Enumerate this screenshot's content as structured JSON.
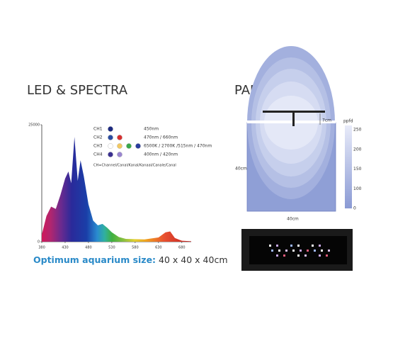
{
  "headings": {
    "left": "LED & SPECTRA",
    "right": "PAR"
  },
  "chart_data": {
    "type": "area",
    "x": [
      380,
      390,
      400,
      410,
      420,
      430,
      437,
      443,
      450,
      457,
      463,
      470,
      480,
      490,
      500,
      510,
      520,
      530,
      545,
      560,
      600,
      630,
      645,
      655,
      665,
      680,
      700
    ],
    "values": [
      1500,
      5500,
      7500,
      7000,
      10000,
      13500,
      15000,
      12500,
      22400,
      13000,
      17400,
      14000,
      8000,
      4500,
      3500,
      3800,
      3000,
      2000,
      1000,
      600,
      500,
      900,
      2000,
      2200,
      800,
      200,
      100
    ],
    "xlim": [
      380,
      700
    ],
    "ylim": [
      0,
      25000
    ],
    "xticks": [
      380,
      430,
      480,
      530,
      580,
      630,
      680
    ],
    "yticks": [
      0,
      25000
    ]
  },
  "channels": [
    {
      "label": "CH1",
      "colors": [
        "#1d2a80"
      ],
      "text": "450nm"
    },
    {
      "label": "CH2",
      "colors": [
        "#2b4ca0",
        "#d83030"
      ],
      "text": "470nm / 660nm"
    },
    {
      "label": "CH3",
      "colors": [
        "#ffffff",
        "#f2c860",
        "#3aa84a",
        "#2a3c9e"
      ],
      "text": "6500K / 2700K /515nm / 470nm"
    },
    {
      "label": "CH4",
      "colors": [
        "#3a3090",
        "#9a86d0"
      ],
      "text": "400nm / 420nm"
    }
  ],
  "channel_note": "CH=Channel/Canal/Kanal/Kanaal/Canale/Canal",
  "caption": {
    "bold": "Optimum aquarium size:",
    "rest": "40 x 40 x 40cm"
  },
  "par": {
    "gap": "7cm",
    "height": "40cm",
    "width": "40cm",
    "unit": "ppfd",
    "scale": [
      250,
      200,
      150,
      100,
      0
    ]
  }
}
